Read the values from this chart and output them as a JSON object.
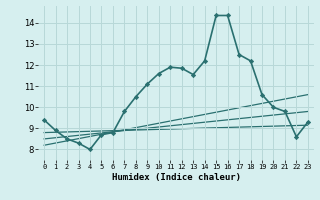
{
  "xlabel": "Humidex (Indice chaleur)",
  "xlim": [
    -0.5,
    23.5
  ],
  "ylim": [
    7.5,
    14.8
  ],
  "yticks": [
    8,
    9,
    10,
    11,
    12,
    13,
    14
  ],
  "xticks": [
    0,
    1,
    2,
    3,
    4,
    5,
    6,
    7,
    8,
    9,
    10,
    11,
    12,
    13,
    14,
    15,
    16,
    17,
    18,
    19,
    20,
    21,
    22,
    23
  ],
  "bg_color": "#d6efef",
  "grid_color": "#b8d8d8",
  "line_color": "#2a7070",
  "main_line": {
    "x": [
      0,
      1,
      2,
      3,
      4,
      5,
      6,
      7,
      8,
      9,
      10,
      11,
      12,
      13,
      14,
      15,
      16,
      17,
      18,
      19,
      20,
      21,
      22,
      23
    ],
    "y": [
      9.4,
      8.9,
      8.5,
      8.3,
      8.0,
      8.7,
      8.8,
      9.8,
      10.5,
      11.1,
      11.6,
      11.9,
      11.85,
      11.55,
      12.2,
      14.35,
      14.35,
      12.5,
      12.2,
      10.6,
      10.0,
      9.8,
      8.6,
      9.3
    ]
  },
  "trend_lines": [
    {
      "x0": 0,
      "x1": 23,
      "y0": 8.8,
      "y1": 9.15
    },
    {
      "x0": 0,
      "x1": 23,
      "y0": 8.5,
      "y1": 9.8
    },
    {
      "x0": 0,
      "x1": 23,
      "y0": 8.2,
      "y1": 10.6
    }
  ]
}
